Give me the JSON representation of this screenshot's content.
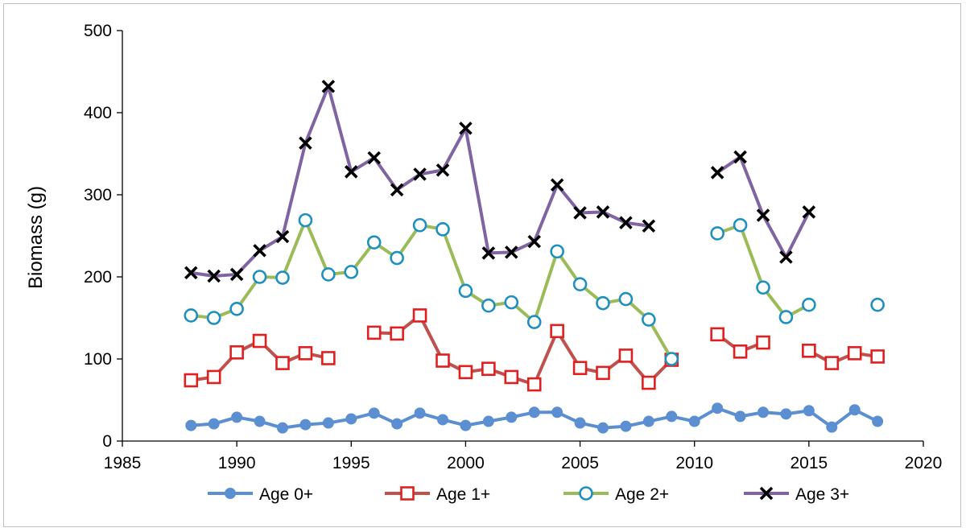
{
  "chart_data": {
    "type": "line",
    "title": "",
    "xlabel": "",
    "ylabel": "Biomass (g)",
    "xlim": [
      1985,
      2020
    ],
    "ylim": [
      0,
      500
    ],
    "xticks": [
      1985,
      1990,
      1995,
      2000,
      2005,
      2010,
      2015,
      2020
    ],
    "yticks": [
      0,
      100,
      200,
      300,
      400,
      500
    ],
    "grid": false,
    "legend_position": "bottom",
    "series": [
      {
        "name": "Age 0+",
        "color": "#5b8fd1",
        "marker": "filled-circle",
        "x": [
          1988,
          1989,
          1990,
          1991,
          1992,
          1993,
          1994,
          1995,
          1996,
          1997,
          1998,
          1999,
          2000,
          2001,
          2002,
          2003,
          2004,
          2005,
          2006,
          2007,
          2008,
          2009,
          2010,
          2011,
          2012,
          2013,
          2014,
          2015,
          2016,
          2017,
          2018
        ],
        "y": [
          19,
          21,
          29,
          24,
          16,
          20,
          22,
          27,
          34,
          21,
          34,
          26,
          19,
          24,
          29,
          35,
          35,
          22,
          16,
          18,
          24,
          30,
          24,
          40,
          30,
          35,
          33,
          37,
          17,
          38,
          24
        ]
      },
      {
        "name": "Age 1+",
        "color": "#c0504d",
        "marker": "open-square",
        "marker_color": "#e02020",
        "x": [
          1988,
          1989,
          1990,
          1991,
          1992,
          1993,
          1994,
          1995,
          1996,
          1997,
          1998,
          1999,
          2000,
          2001,
          2002,
          2003,
          2004,
          2005,
          2006,
          2007,
          2008,
          2009,
          2010,
          2011,
          2012,
          2013,
          2014,
          2015,
          2016,
          2017,
          2018
        ],
        "y": [
          74,
          78,
          108,
          122,
          95,
          107,
          101,
          null,
          132,
          131,
          153,
          98,
          84,
          88,
          78,
          69,
          134,
          89,
          83,
          104,
          71,
          99,
          null,
          130,
          109,
          120,
          null,
          110,
          95,
          107,
          103
        ]
      },
      {
        "name": "Age 2+",
        "color": "#9bbb59",
        "marker": "open-circle",
        "marker_color": "#1f8fc0",
        "x": [
          1988,
          1989,
          1990,
          1991,
          1992,
          1993,
          1994,
          1995,
          1996,
          1997,
          1998,
          1999,
          2000,
          2001,
          2002,
          2003,
          2004,
          2005,
          2006,
          2007,
          2008,
          2009,
          2010,
          2011,
          2012,
          2013,
          2014,
          2015,
          2016,
          2017,
          2018
        ],
        "y": [
          153,
          150,
          161,
          200,
          199,
          269,
          203,
          206,
          242,
          223,
          263,
          258,
          183,
          165,
          169,
          145,
          231,
          191,
          168,
          173,
          148,
          100,
          null,
          253,
          263,
          187,
          151,
          166,
          null,
          null,
          166
        ]
      },
      {
        "name": "Age 3+",
        "color": "#8064a2",
        "marker": "x",
        "marker_color": "#000000",
        "x": [
          1988,
          1989,
          1990,
          1991,
          1992,
          1993,
          1994,
          1995,
          1996,
          1997,
          1998,
          1999,
          2000,
          2001,
          2002,
          2003,
          2004,
          2005,
          2006,
          2007,
          2008,
          2009,
          2010,
          2011,
          2012,
          2013,
          2014,
          2015,
          2016,
          2017,
          2018
        ],
        "y": [
          205,
          201,
          203,
          232,
          249,
          363,
          432,
          328,
          345,
          306,
          325,
          330,
          381,
          229,
          230,
          243,
          312,
          278,
          279,
          266,
          262,
          null,
          null,
          327,
          346,
          275,
          224,
          279,
          null,
          null,
          null
        ]
      }
    ]
  }
}
